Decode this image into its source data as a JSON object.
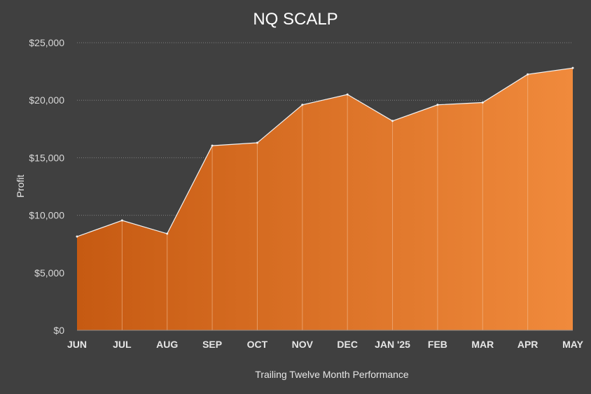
{
  "chart_data": {
    "type": "area",
    "title": "NQ SCALP",
    "xlabel": "Trailing Twelve Month Performance",
    "ylabel": "Profit",
    "categories": [
      "JUN",
      "JUL",
      "AUG",
      "SEP",
      "OCT",
      "NOV",
      "DEC",
      "JAN '25",
      "FEB",
      "MAR",
      "APR",
      "MAY"
    ],
    "series": [
      {
        "name": "Profit",
        "values": [
          8150,
          9550,
          8400,
          16050,
          16300,
          19600,
          20500,
          18200,
          19600,
          19800,
          22250,
          22800
        ]
      }
    ],
    "ylim": [
      0,
      25000
    ],
    "yticks": [
      0,
      5000,
      10000,
      15000,
      20000,
      25000
    ],
    "ytick_labels": [
      "$0",
      "$5,000",
      "$10,000",
      "$15,000",
      "$20,000",
      "$25,000"
    ],
    "grid": true,
    "colors": {
      "background": "#404040",
      "fill_start": "#c65a12",
      "fill_end": "#f08a3c",
      "line": "#f2f2f2",
      "gridline": "#7f7f7f",
      "text": "#d9d9d9"
    }
  }
}
